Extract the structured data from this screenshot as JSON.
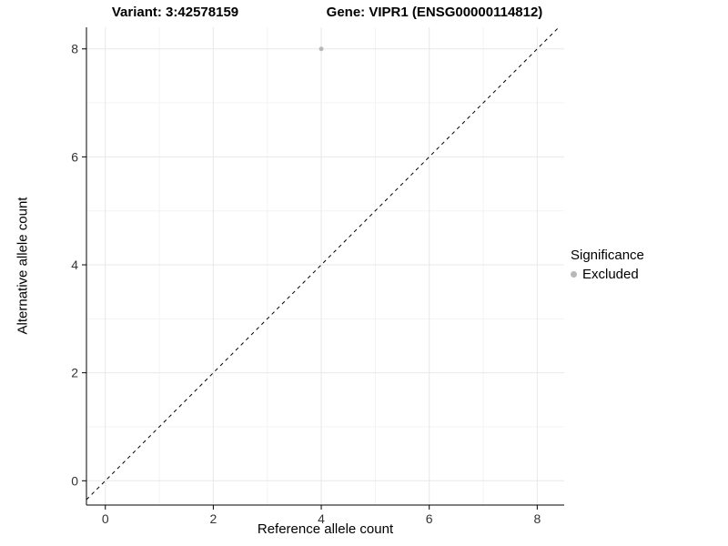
{
  "titles": {
    "variant": "Variant: 3:42578159",
    "gene": "Gene: VIPR1 (ENSG00000114812)"
  },
  "axes": {
    "x_label": "Reference allele count",
    "y_label": "Alternative allele count"
  },
  "legend": {
    "title": "Significance",
    "items": [
      {
        "label": "Excluded",
        "color": "#b8b8b8"
      }
    ]
  },
  "chart_data": {
    "type": "scatter",
    "title": "Variant: 3:42578159 — Gene: VIPR1 (ENSG00000114812)",
    "xlabel": "Reference allele count",
    "ylabel": "Alternative allele count",
    "xlim": [
      -0.35,
      8.5
    ],
    "ylim": [
      -0.45,
      8.4
    ],
    "xticks": [
      0,
      2,
      4,
      6,
      8
    ],
    "yticks": [
      0,
      2,
      4,
      6,
      8
    ],
    "grid": true,
    "legend_position": "right",
    "series": [
      {
        "name": "Excluded",
        "color": "#b8b8b8",
        "points": [
          {
            "x": 4,
            "y": 8
          }
        ]
      }
    ],
    "reference_line": {
      "type": "identity",
      "slope": 1,
      "intercept": 0,
      "style": "dashed",
      "color": "#000000"
    },
    "colors": {
      "major_grid": "#e8e8e8",
      "minor_grid": "#f3f3f3",
      "axis_line": "#000000",
      "tick_label": "#333333"
    }
  }
}
